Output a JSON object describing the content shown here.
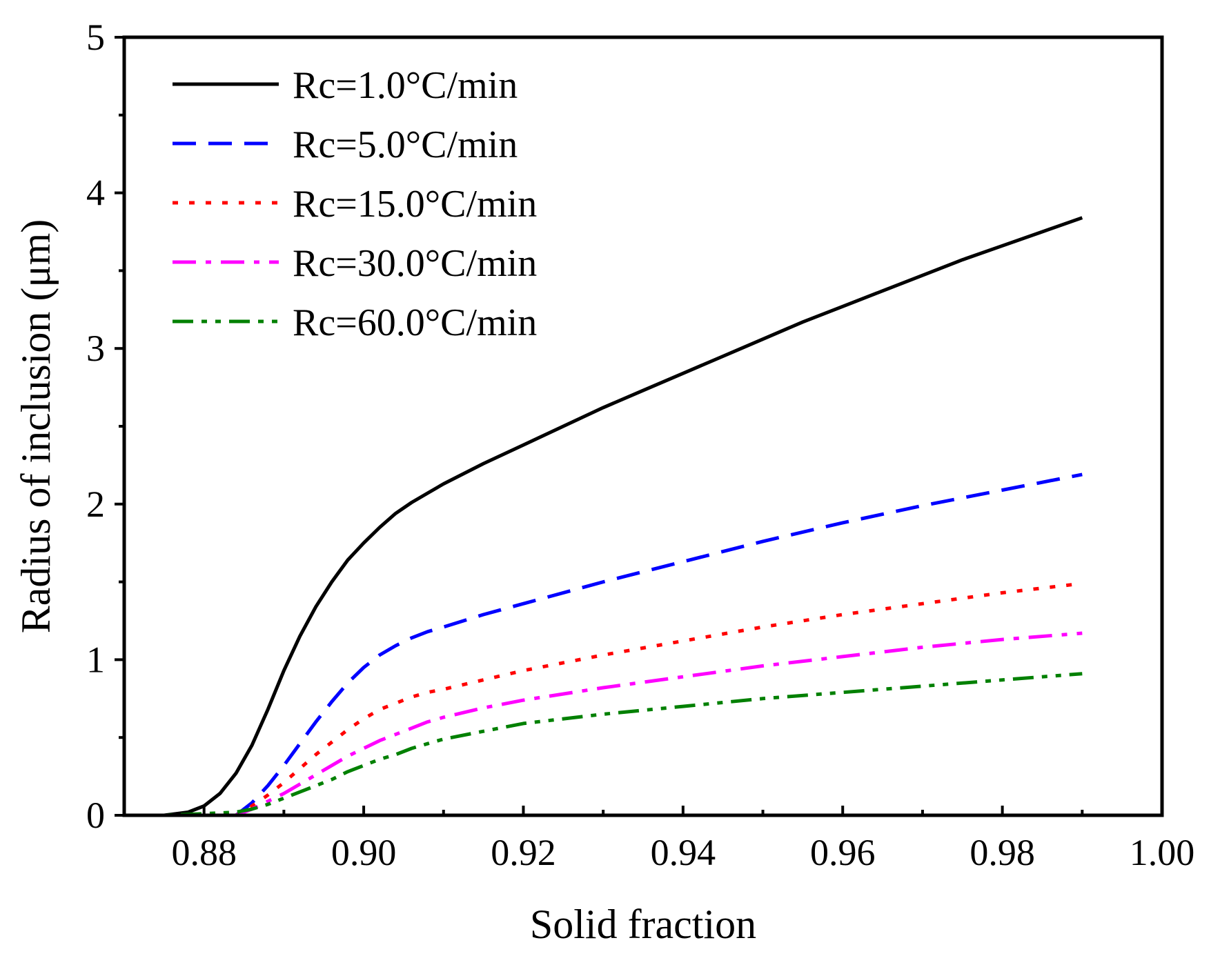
{
  "chart_data": {
    "type": "line",
    "title": "",
    "xlabel": "Solid fraction",
    "ylabel": "Radius of inclusion (μm)",
    "xlim": [
      0.87,
      1.0
    ],
    "ylim": [
      0,
      5
    ],
    "x_ticks": [
      0.88,
      0.9,
      0.92,
      0.94,
      0.96,
      0.98,
      1.0
    ],
    "x_tick_labels": [
      "0.88",
      "0.90",
      "0.92",
      "0.94",
      "0.96",
      "0.98",
      "1.00"
    ],
    "y_ticks": [
      0,
      1,
      2,
      3,
      4,
      5
    ],
    "y_tick_labels": [
      "0",
      "1",
      "2",
      "3",
      "4",
      "5"
    ],
    "grid": false,
    "legend_position": "top-left",
    "series": [
      {
        "name": "Rc=1.0°C/min",
        "color": "#000000",
        "dash": "solid",
        "x": [
          0.87,
          0.875,
          0.878,
          0.88,
          0.882,
          0.884,
          0.886,
          0.888,
          0.89,
          0.892,
          0.894,
          0.896,
          0.898,
          0.9,
          0.902,
          0.904,
          0.906,
          0.908,
          0.91,
          0.915,
          0.92,
          0.925,
          0.93,
          0.935,
          0.94,
          0.945,
          0.95,
          0.955,
          0.96,
          0.965,
          0.97,
          0.975,
          0.98,
          0.985,
          0.99
        ],
        "y": [
          0.0,
          0.0,
          0.02,
          0.06,
          0.14,
          0.27,
          0.45,
          0.68,
          0.93,
          1.15,
          1.34,
          1.5,
          1.64,
          1.75,
          1.85,
          1.94,
          2.01,
          2.07,
          2.13,
          2.26,
          2.38,
          2.5,
          2.62,
          2.73,
          2.84,
          2.95,
          3.06,
          3.17,
          3.27,
          3.37,
          3.47,
          3.57,
          3.66,
          3.75,
          3.84
        ]
      },
      {
        "name": "Rc=5.0°C/min",
        "color": "#0000ff",
        "dash": "dashed",
        "x": [
          0.884,
          0.886,
          0.888,
          0.89,
          0.892,
          0.894,
          0.896,
          0.898,
          0.9,
          0.902,
          0.904,
          0.906,
          0.908,
          0.91,
          0.915,
          0.92,
          0.93,
          0.94,
          0.95,
          0.96,
          0.97,
          0.98,
          0.99
        ],
        "y": [
          0.0,
          0.08,
          0.19,
          0.32,
          0.46,
          0.6,
          0.73,
          0.85,
          0.95,
          1.03,
          1.09,
          1.14,
          1.18,
          1.21,
          1.29,
          1.36,
          1.5,
          1.63,
          1.76,
          1.88,
          1.99,
          2.09,
          2.19
        ]
      },
      {
        "name": "Rc=15.0°C/min",
        "color": "#ff0000",
        "dash": "dotted",
        "x": [
          0.884,
          0.886,
          0.888,
          0.89,
          0.892,
          0.894,
          0.896,
          0.898,
          0.9,
          0.902,
          0.904,
          0.906,
          0.908,
          0.91,
          0.915,
          0.92,
          0.93,
          0.94,
          0.95,
          0.96,
          0.97,
          0.98,
          0.99
        ],
        "y": [
          0.0,
          0.06,
          0.13,
          0.21,
          0.3,
          0.39,
          0.47,
          0.55,
          0.62,
          0.68,
          0.72,
          0.76,
          0.79,
          0.81,
          0.87,
          0.93,
          1.03,
          1.12,
          1.21,
          1.29,
          1.36,
          1.43,
          1.49
        ]
      },
      {
        "name": "Rc=30.0°C/min",
        "color": "#ff00ff",
        "dash": "dashdot",
        "x": [
          0.884,
          0.886,
          0.888,
          0.89,
          0.892,
          0.894,
          0.896,
          0.898,
          0.9,
          0.902,
          0.904,
          0.906,
          0.908,
          0.91,
          0.915,
          0.92,
          0.93,
          0.94,
          0.95,
          0.96,
          0.97,
          0.98,
          0.99
        ],
        "y": [
          0.0,
          0.04,
          0.09,
          0.14,
          0.2,
          0.26,
          0.32,
          0.38,
          0.43,
          0.48,
          0.52,
          0.56,
          0.6,
          0.63,
          0.69,
          0.74,
          0.82,
          0.89,
          0.96,
          1.02,
          1.08,
          1.13,
          1.17
        ]
      },
      {
        "name": "Rc=60.0°C/min",
        "color": "#008000",
        "dash": "dashdotdot",
        "x": [
          0.87,
          0.875,
          0.88,
          0.884,
          0.886,
          0.888,
          0.89,
          0.892,
          0.894,
          0.896,
          0.898,
          0.9,
          0.902,
          0.904,
          0.906,
          0.908,
          0.91,
          0.915,
          0.92,
          0.93,
          0.94,
          0.95,
          0.96,
          0.97,
          0.98,
          0.99
        ],
        "y": [
          0.0,
          0.0,
          0.01,
          0.02,
          0.04,
          0.07,
          0.11,
          0.15,
          0.19,
          0.23,
          0.28,
          0.32,
          0.36,
          0.39,
          0.43,
          0.46,
          0.49,
          0.54,
          0.59,
          0.65,
          0.7,
          0.75,
          0.79,
          0.83,
          0.87,
          0.91
        ]
      }
    ]
  }
}
